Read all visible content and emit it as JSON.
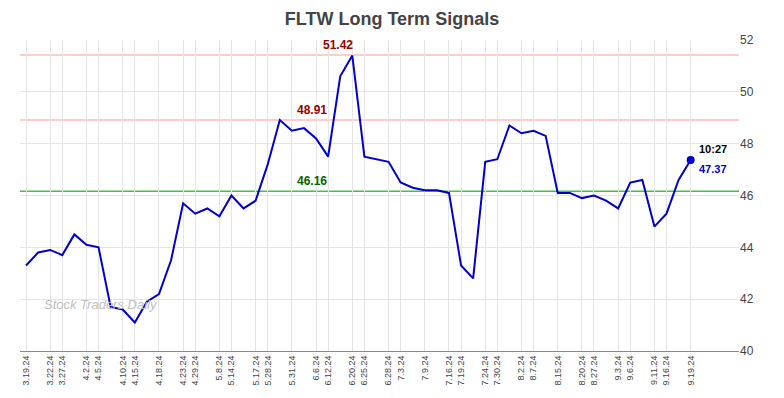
{
  "chart_data": {
    "type": "line",
    "title": "FLTW Long Term Signals",
    "categories": [
      "3.19.24",
      null,
      "3.22.24",
      "3.27.24",
      null,
      "4.2.24",
      "4.5.24",
      null,
      "4.10.24",
      "4.15.24",
      null,
      "4.18.24",
      null,
      "4.23.24",
      "4.29.24",
      null,
      "5.8.24",
      "5.14.24",
      null,
      "5.17.24",
      "5.28.24",
      null,
      "5.31.24",
      null,
      "6.6.24",
      "6.12.24",
      null,
      "6.20.24",
      "6.25.24",
      null,
      "6.28.24",
      "7.3.24",
      null,
      "7.9.24",
      null,
      "7.16.24",
      "7.19.24",
      null,
      "7.24.24",
      "7.30.24",
      null,
      "8.2.24",
      "8.7.24",
      null,
      "8.15.24",
      null,
      "8.20.24",
      "8.27.24",
      null,
      "9.3.24",
      "9.6.24",
      null,
      "9.11.24",
      "9.16.24",
      null,
      "9.19.24"
    ],
    "values": [
      43.3,
      43.8,
      43.9,
      43.7,
      44.5,
      44.1,
      44.0,
      41.7,
      41.6,
      41.1,
      41.9,
      42.2,
      43.5,
      45.7,
      45.3,
      45.5,
      45.2,
      46.0,
      45.5,
      45.8,
      47.2,
      48.91,
      48.5,
      48.6,
      48.2,
      47.5,
      50.6,
      51.4,
      47.5,
      47.4,
      47.3,
      46.5,
      46.3,
      46.2,
      46.2,
      46.1,
      43.3,
      42.8,
      47.3,
      47.4,
      48.7,
      48.4,
      48.5,
      48.3,
      46.1,
      46.1,
      45.9,
      46.0,
      45.8,
      45.5,
      46.5,
      46.6,
      44.8,
      45.3,
      46.6,
      47.37
    ],
    "color": "#0000cc",
    "ylim": [
      40,
      52
    ],
    "yticks": [
      40,
      42,
      44,
      46,
      48,
      50,
      52
    ],
    "grid": true,
    "hlines": [
      {
        "value": 51.42,
        "color": "#ffbbbb"
      },
      {
        "value": 48.91,
        "color": "#ffbbbb"
      },
      {
        "value": 46.16,
        "color": "#33cc33"
      }
    ],
    "last_point": {
      "value": 47.37,
      "time": "10:27"
    },
    "watermark": "Stock Traders Daily"
  }
}
